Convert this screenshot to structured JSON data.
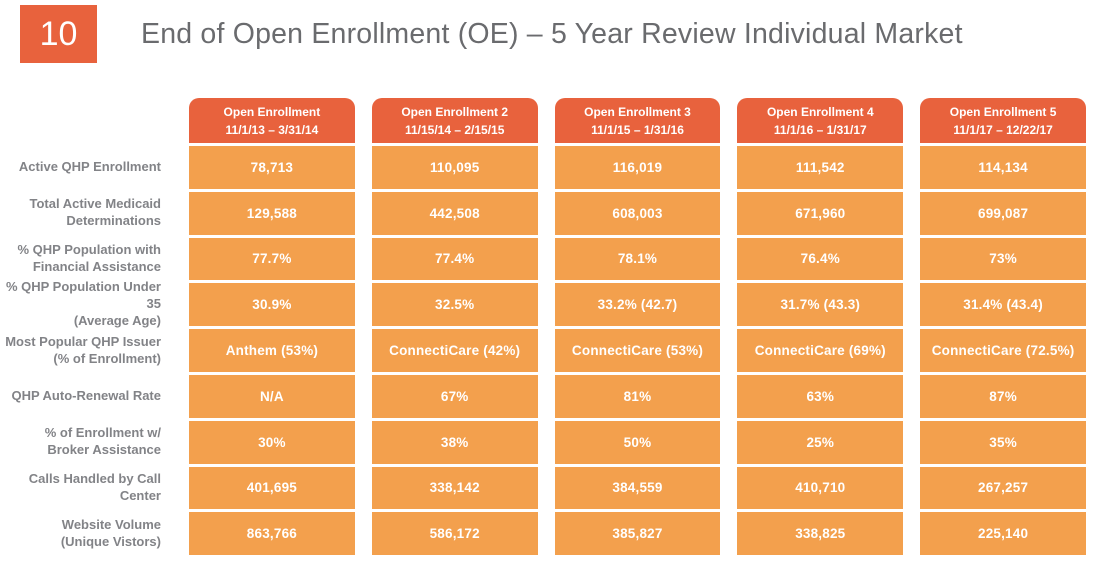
{
  "slide": {
    "number": "10",
    "title": "End of Open Enrollment (OE) – 5 Year Review Individual Market"
  },
  "colors": {
    "header_bg": "#e8623d",
    "cell_bg": "#f3a04d",
    "slide_number_bg": "#e8623d",
    "title_text": "#6a6b6e",
    "row_label_text": "#828387",
    "cell_text": "#ffffff"
  },
  "table": {
    "columns": [
      {
        "title": "Open Enrollment",
        "dates": "11/1/13 – 3/31/14"
      },
      {
        "title": "Open Enrollment 2",
        "dates": "11/15/14 – 2/15/15"
      },
      {
        "title": "Open Enrollment 3",
        "dates": "11/1/15 – 1/31/16"
      },
      {
        "title": "Open Enrollment 4",
        "dates": "11/1/16 – 1/31/17"
      },
      {
        "title": "Open Enrollment 5",
        "dates": "11/1/17 – 12/22/17"
      }
    ],
    "rows": [
      {
        "label": "Active QHP Enrollment",
        "values": [
          "78,713",
          "110,095",
          "116,019",
          "111,542",
          "114,134"
        ]
      },
      {
        "label": "Total Active Medicaid\nDeterminations",
        "values": [
          "129,588",
          "442,508",
          "608,003",
          "671,960",
          "699,087"
        ]
      },
      {
        "label": "% QHP Population with\nFinancial Assistance",
        "values": [
          "77.7%",
          "77.4%",
          "78.1%",
          "76.4%",
          "73%"
        ]
      },
      {
        "label": "% QHP Population Under 35\n(Average Age)",
        "values": [
          "30.9%",
          "32.5%",
          "33.2% (42.7)",
          "31.7% (43.3)",
          "31.4% (43.4)"
        ]
      },
      {
        "label": "Most Popular QHP Issuer\n(% of Enrollment)",
        "values": [
          "Anthem (53%)",
          "ConnectiCare (42%)",
          "ConnectiCare (53%)",
          "ConnectiCare (69%)",
          "ConnectiCare (72.5%)"
        ]
      },
      {
        "label": "QHP Auto-Renewal Rate",
        "values": [
          "N/A",
          "67%",
          "81%",
          "63%",
          "87%"
        ]
      },
      {
        "label": "% of Enrollment w/\nBroker Assistance",
        "values": [
          "30%",
          "38%",
          "50%",
          "25%",
          "35%"
        ]
      },
      {
        "label": "Calls Handled by Call Center",
        "values": [
          "401,695",
          "338,142",
          "384,559",
          "410,710",
          "267,257"
        ]
      },
      {
        "label": "Website Volume\n(Unique Vistors)",
        "values": [
          "863,766",
          "586,172",
          "385,827",
          "338,825",
          "225,140"
        ]
      }
    ]
  }
}
